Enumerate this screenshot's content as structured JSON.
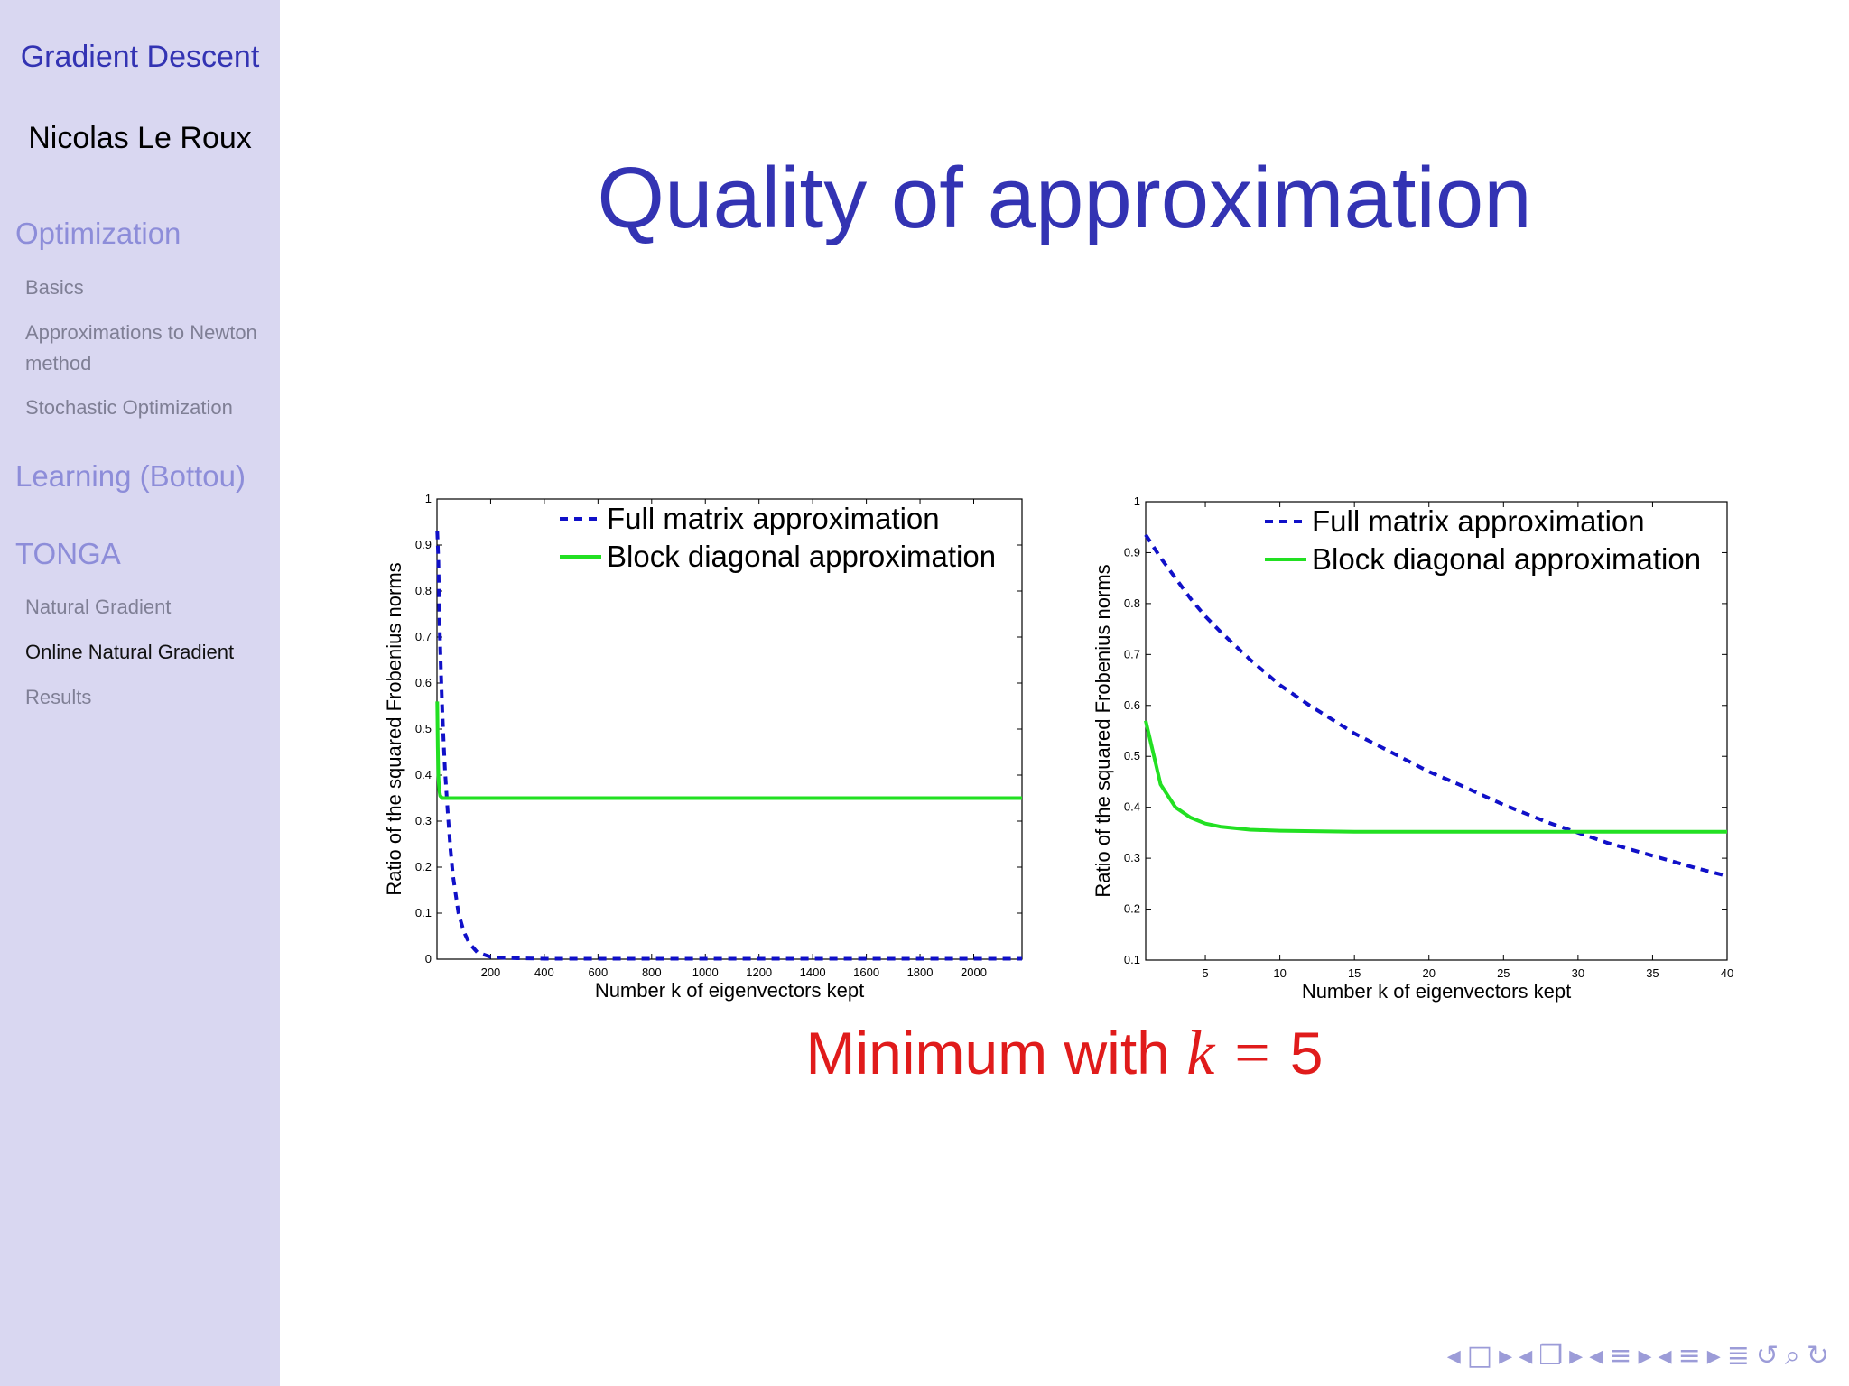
{
  "sidebar": {
    "title": "Gradient Descent",
    "author": "Nicolas Le Roux",
    "sections": [
      {
        "label": "Optimization",
        "items": [
          "Basics",
          "Approximations to Newton method",
          "Stochastic Optimization"
        ]
      },
      {
        "label": "Learning (Bottou)",
        "items": []
      },
      {
        "label": "TONGA",
        "items": [
          "Natural Gradient",
          "Online Natural Gradient",
          "Results"
        ]
      }
    ],
    "current_item": "Online Natural Gradient"
  },
  "slide": {
    "title": "Quality of approximation",
    "caption_prefix": "Minimum with",
    "caption_var": "k",
    "caption_eq": "=",
    "caption_value": "5"
  },
  "colors": {
    "accent": "#3333b3",
    "sidebar_bg": "#d9d7f1",
    "caption": "#e01b1b",
    "full": "#1010c8",
    "block": "#22e022"
  },
  "navigation": {
    "icons": [
      "arrow-left-icon",
      "frame-icon",
      "arrow-right-icon",
      "arrow-left-icon",
      "subsection-icon",
      "arrow-right-icon",
      "arrow-left-icon",
      "section-icon",
      "arrow-right-icon",
      "arrow-left-icon",
      "section-icon",
      "arrow-right-icon",
      "doc-icon",
      "undo-icon",
      "search-icon",
      "redo-icon"
    ]
  },
  "chart_data": [
    {
      "type": "line",
      "xlabel": "Number k of eigenvectors kept",
      "ylabel": "Ratio of the squared Frobenius norms",
      "xlim": [
        0,
        2180
      ],
      "ylim": [
        0,
        1
      ],
      "xticks": [
        200,
        400,
        600,
        800,
        1000,
        1200,
        1400,
        1600,
        1800,
        2000
      ],
      "yticks": [
        0,
        0.1,
        0.2,
        0.3,
        0.4,
        0.5,
        0.6,
        0.7,
        0.8,
        0.9,
        1
      ],
      "legend_position": "top-right",
      "series": [
        {
          "name": "Full matrix approximation",
          "style": "dashed",
          "color": "#1010c8",
          "x": [
            1,
            5,
            10,
            15,
            20,
            25,
            30,
            40,
            50,
            60,
            70,
            80,
            100,
            120,
            150,
            200,
            250,
            300,
            400,
            600,
            800,
            1000,
            1500,
            2000,
            2180
          ],
          "y": [
            0.93,
            0.87,
            0.72,
            0.62,
            0.54,
            0.47,
            0.41,
            0.32,
            0.24,
            0.18,
            0.14,
            0.1,
            0.06,
            0.035,
            0.015,
            0.005,
            0.003,
            0.002,
            0.001,
            0.001,
            0.001,
            0.001,
            0.001,
            0.001,
            0.001
          ]
        },
        {
          "name": "Block diagonal approximation",
          "style": "solid",
          "color": "#22e022",
          "x": [
            1,
            3,
            5,
            8,
            12,
            20,
            40,
            100,
            500,
            1000,
            2180
          ],
          "y": [
            0.56,
            0.46,
            0.4,
            0.37,
            0.355,
            0.35,
            0.35,
            0.35,
            0.35,
            0.35,
            0.35
          ]
        }
      ]
    },
    {
      "type": "line",
      "xlabel": "Number k of eigenvectors kept",
      "ylabel": "Ratio of the squared Frobenius norms",
      "xlim": [
        1,
        40
      ],
      "ylim": [
        0.1,
        1
      ],
      "xticks": [
        5,
        10,
        15,
        20,
        25,
        30,
        35,
        40
      ],
      "yticks": [
        0.1,
        0.2,
        0.3,
        0.4,
        0.5,
        0.6,
        0.7,
        0.8,
        0.9,
        1
      ],
      "legend_position": "top-right",
      "series": [
        {
          "name": "Full matrix approximation",
          "style": "dashed",
          "color": "#1010c8",
          "x": [
            1,
            2,
            3,
            4,
            5,
            6,
            8,
            10,
            12,
            15,
            18,
            20,
            22,
            25,
            28,
            30,
            32,
            35,
            38,
            40
          ],
          "y": [
            0.935,
            0.89,
            0.85,
            0.81,
            0.775,
            0.745,
            0.69,
            0.64,
            0.6,
            0.545,
            0.5,
            0.47,
            0.445,
            0.405,
            0.37,
            0.35,
            0.33,
            0.305,
            0.28,
            0.265
          ]
        },
        {
          "name": "Block diagonal approximation",
          "style": "solid",
          "color": "#22e022",
          "x": [
            1,
            2,
            3,
            4,
            5,
            6,
            8,
            10,
            15,
            20,
            30,
            40
          ],
          "y": [
            0.57,
            0.445,
            0.4,
            0.38,
            0.368,
            0.362,
            0.356,
            0.354,
            0.352,
            0.352,
            0.352,
            0.352
          ]
        }
      ]
    }
  ]
}
